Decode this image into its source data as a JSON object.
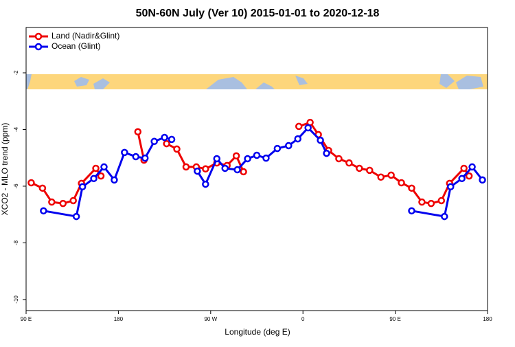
{
  "chart_data": {
    "type": "line",
    "title": "50N-60N July (Ver 10)   2015-01-01 to 2020-12-18",
    "x_label": "Longitude (deg E)",
    "y_label": "XCO2 - MLO trend (ppm)",
    "xlim": [
      90,
      540
    ],
    "xticks": [
      {
        "value": 90,
        "label": "90 E"
      },
      {
        "value": 180,
        "label": "180"
      },
      {
        "value": 270,
        "label": "90 W"
      },
      {
        "value": 360,
        "label": "0"
      },
      {
        "value": 450,
        "label": "90 E"
      },
      {
        "value": 540,
        "label": "180"
      }
    ],
    "ylim": [
      -10.39,
      -0.4
    ],
    "yticks": [
      -2,
      -4,
      -6,
      -8,
      -10
    ],
    "legend": "top-left",
    "series": [
      {
        "name": "Land (Nadir&Glint)",
        "color": "#ee0000",
        "x": [
          95,
          106,
          115,
          126,
          136,
          144,
          158,
          163,
          null,
          199,
          205,
          null,
          227,
          237,
          246,
          256,
          265,
          276,
          286,
          295,
          302,
          null,
          356,
          367,
          375,
          385,
          395,
          405,
          415,
          425,
          436,
          446,
          456,
          466,
          476,
          485,
          495,
          503,
          517,
          522
        ],
        "values": [
          -5.88,
          -6.07,
          -6.56,
          -6.61,
          -6.51,
          -5.9,
          -5.37,
          -5.64,
          null,
          -4.08,
          -5.08,
          null,
          -4.5,
          -4.69,
          -5.32,
          -5.32,
          -5.39,
          -5.18,
          -5.27,
          -4.93,
          -5.49,
          null,
          -3.89,
          -3.75,
          -4.18,
          -4.74,
          -5.03,
          -5.18,
          -5.37,
          -5.44,
          -5.68,
          -5.61,
          -5.88,
          -6.07,
          -6.56,
          -6.61,
          -6.51,
          -5.9,
          -5.37,
          -5.64
        ]
      },
      {
        "name": "Ocean (Glint)",
        "color": "#0000ee",
        "x": [
          107,
          139,
          145,
          156,
          166,
          176,
          186,
          197,
          206,
          215,
          225,
          232,
          null,
          257,
          265,
          276,
          284,
          296,
          306,
          315,
          324,
          335,
          346,
          355,
          365,
          377,
          383,
          null,
          466,
          498,
          504,
          515,
          525,
          535
        ],
        "values": [
          -6.87,
          -7.07,
          -6.02,
          -5.73,
          -5.32,
          -5.78,
          -4.81,
          -4.96,
          -5.01,
          -4.42,
          -4.28,
          -4.35,
          null,
          -5.47,
          -5.93,
          -5.03,
          -5.37,
          -5.42,
          -5.03,
          -4.91,
          -5.01,
          -4.67,
          -4.57,
          -4.33,
          -3.94,
          -4.38,
          -4.84,
          null,
          -6.87,
          -7.07,
          -6.02,
          -5.73,
          -5.32,
          -5.78
        ]
      }
    ]
  }
}
